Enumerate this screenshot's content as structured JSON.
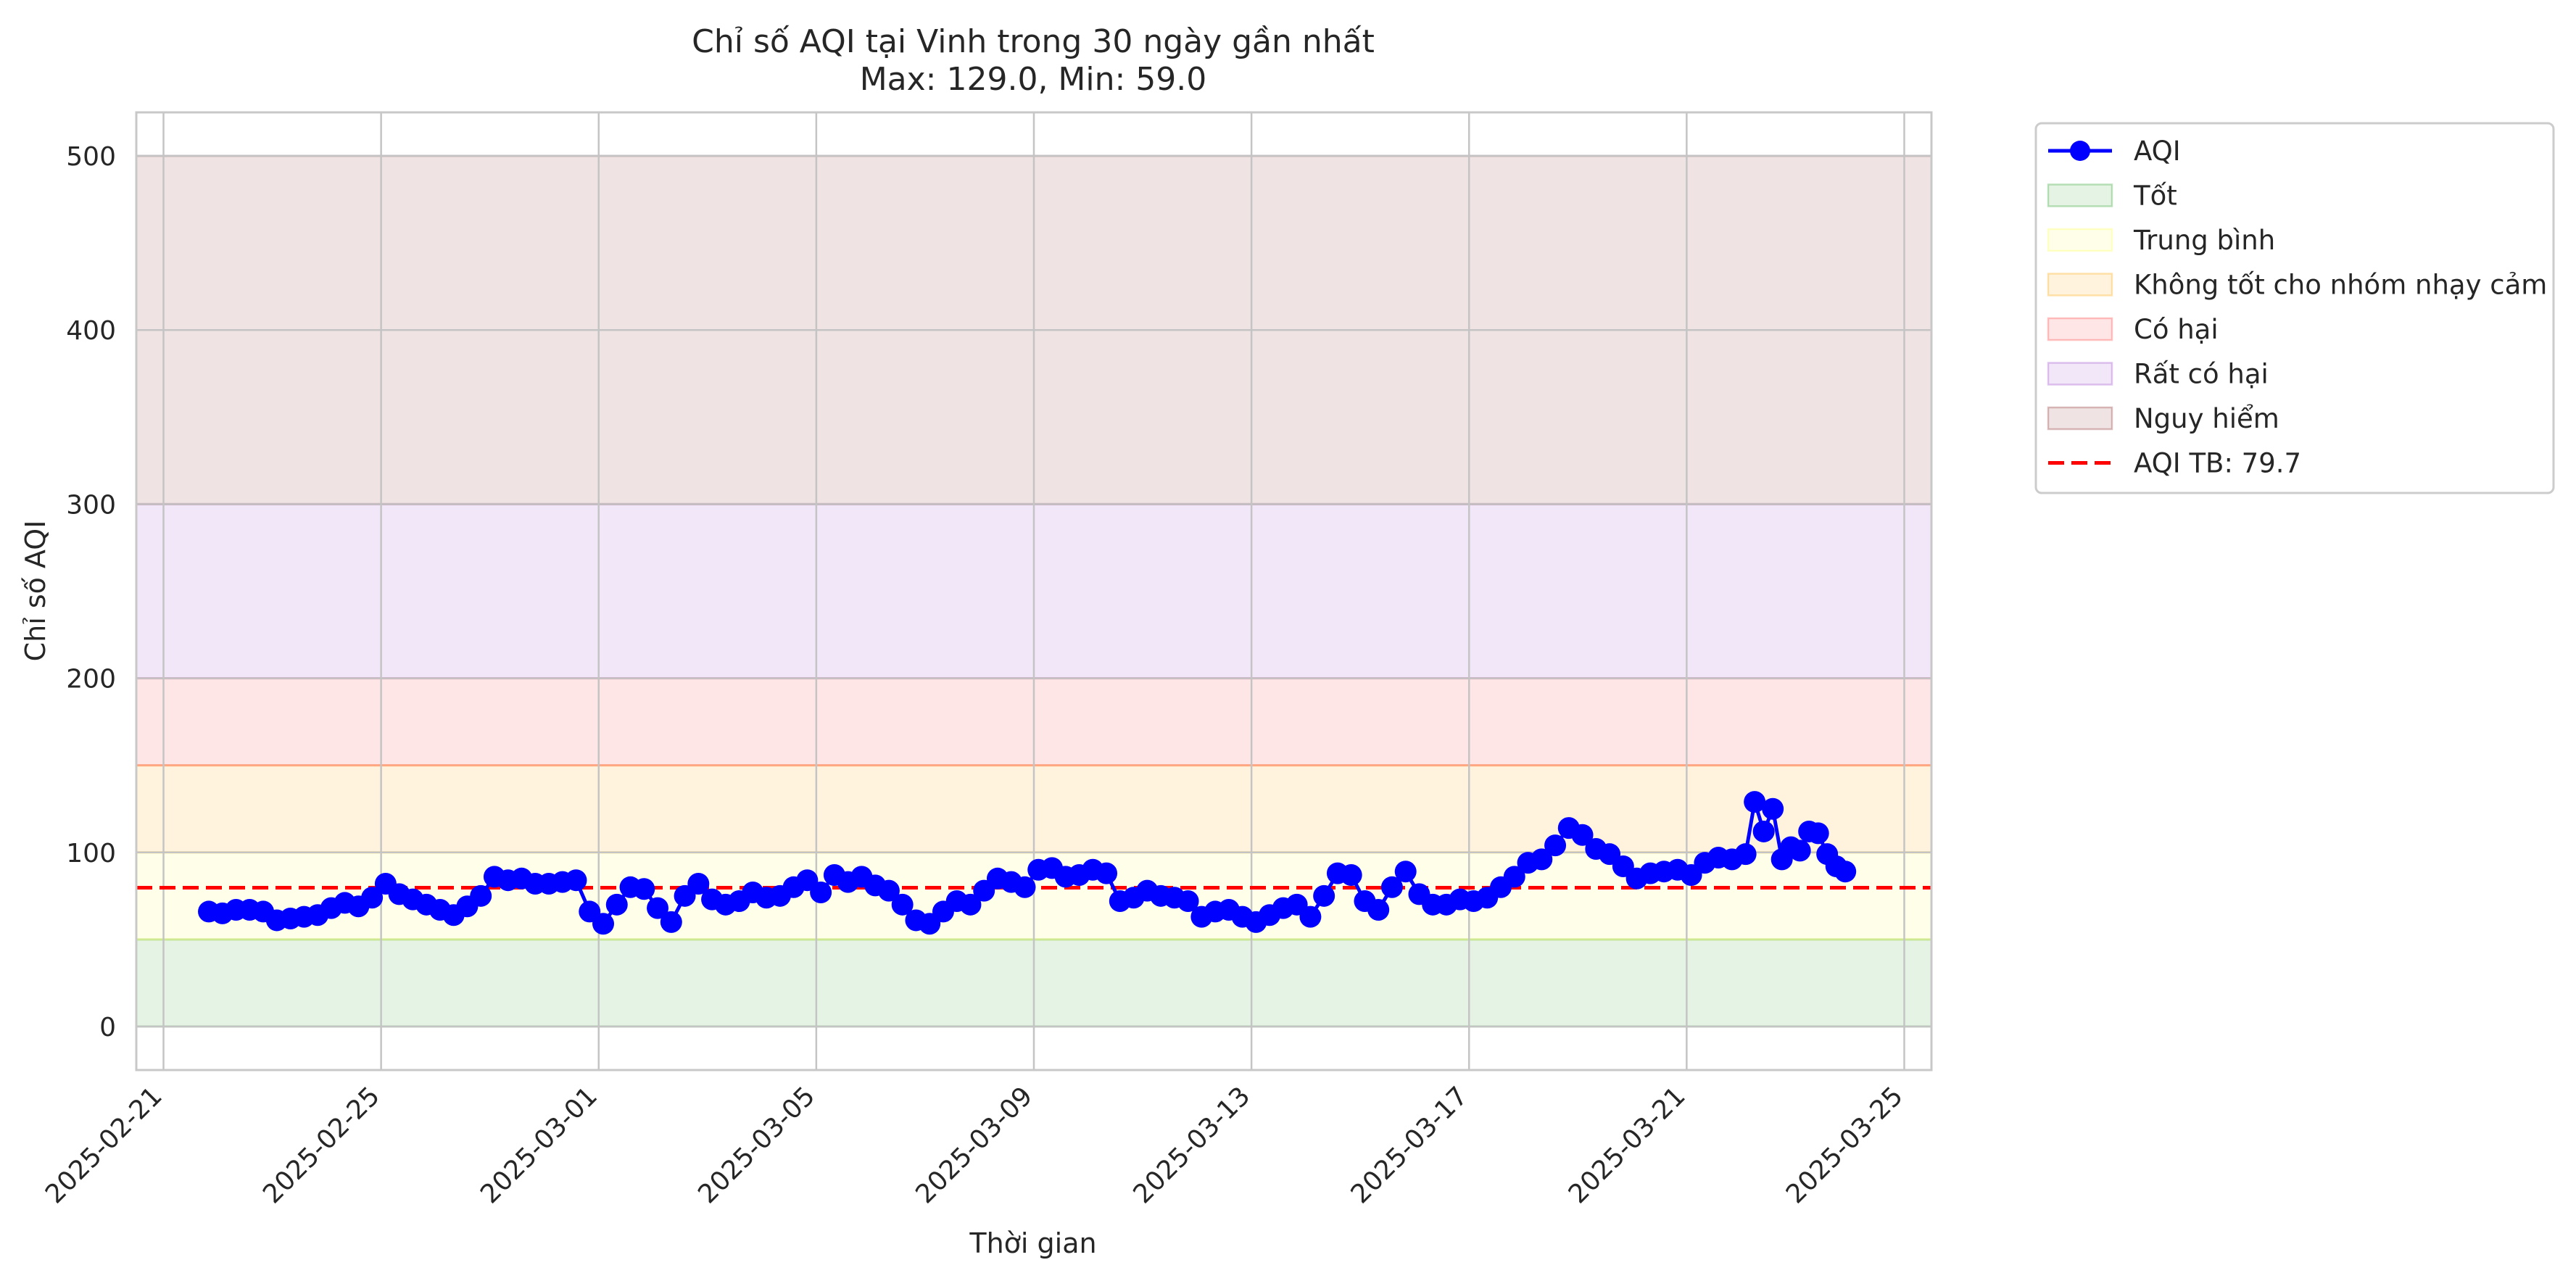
{
  "chart_data": {
    "type": "line",
    "title": "Chỉ số AQI tại Vinh trong 30 ngày gần nhất",
    "subtitle": "Max: 129.0, Min: 59.0",
    "xlabel": "Thời gian",
    "ylabel": "Chỉ số AQI",
    "xlim": [
      "2025-02-20T12:00",
      "2025-03-25T12:00"
    ],
    "ylim": [
      -25,
      525
    ],
    "x_ticks": [
      "2025-02-21",
      "2025-02-25",
      "2025-03-01",
      "2025-03-05",
      "2025-03-09",
      "2025-03-13",
      "2025-03-17",
      "2025-03-21",
      "2025-03-25"
    ],
    "y_ticks": [
      0,
      100,
      200,
      300,
      400,
      500
    ],
    "grid": true,
    "legend_position": "outside-upper-right",
    "bands": [
      {
        "name": "Tốt",
        "from": 0,
        "to": 50,
        "color": "#2ca02c"
      },
      {
        "name": "Trung bình",
        "from": 50,
        "to": 100,
        "color": "#ffff55"
      },
      {
        "name": "Không tốt cho nhóm nhạy cảm",
        "from": 100,
        "to": 150,
        "color": "#ffa500"
      },
      {
        "name": "Có hại",
        "from": 150,
        "to": 200,
        "color": "#ff3b3b"
      },
      {
        "name": "Rất có hại",
        "from": 200,
        "to": 300,
        "color": "#9b45c9"
      },
      {
        "name": "Nguy hiểm",
        "from": 300,
        "to": 500,
        "color": "#8b2a2a"
      }
    ],
    "series": [
      {
        "name": "AQI",
        "color": "#0000ff",
        "points": [
          [
            "2025-02-21T20:00",
            66
          ],
          [
            "2025-02-22T02:00",
            65
          ],
          [
            "2025-02-22T08:00",
            67
          ],
          [
            "2025-02-22T14:00",
            67
          ],
          [
            "2025-02-22T20:00",
            66
          ],
          [
            "2025-02-23T02:00",
            61
          ],
          [
            "2025-02-23T08:00",
            62
          ],
          [
            "2025-02-23T14:00",
            63
          ],
          [
            "2025-02-23T20:00",
            64
          ],
          [
            "2025-02-24T02:00",
            68
          ],
          [
            "2025-02-24T08:00",
            71
          ],
          [
            "2025-02-24T14:00",
            69
          ],
          [
            "2025-02-24T20:00",
            74
          ],
          [
            "2025-02-25T02:00",
            82
          ],
          [
            "2025-02-25T08:00",
            76
          ],
          [
            "2025-02-25T14:00",
            73
          ],
          [
            "2025-02-25T20:00",
            70
          ],
          [
            "2025-02-26T02:00",
            67
          ],
          [
            "2025-02-26T08:00",
            64
          ],
          [
            "2025-02-26T14:00",
            69
          ],
          [
            "2025-02-26T20:00",
            75
          ],
          [
            "2025-02-27T02:00",
            86
          ],
          [
            "2025-02-27T08:00",
            84
          ],
          [
            "2025-02-27T14:00",
            85
          ],
          [
            "2025-02-27T20:00",
            82
          ],
          [
            "2025-02-28T02:00",
            82
          ],
          [
            "2025-02-28T08:00",
            83
          ],
          [
            "2025-02-28T14:00",
            84
          ],
          [
            "2025-02-28T20:00",
            66
          ],
          [
            "2025-03-01T02:00",
            59
          ],
          [
            "2025-03-01T08:00",
            70
          ],
          [
            "2025-03-01T14:00",
            80
          ],
          [
            "2025-03-01T20:00",
            79
          ],
          [
            "2025-03-02T02:00",
            68
          ],
          [
            "2025-03-02T08:00",
            60
          ],
          [
            "2025-03-02T14:00",
            75
          ],
          [
            "2025-03-02T20:00",
            82
          ],
          [
            "2025-03-03T02:00",
            73
          ],
          [
            "2025-03-03T08:00",
            70
          ],
          [
            "2025-03-03T14:00",
            72
          ],
          [
            "2025-03-03T20:00",
            77
          ],
          [
            "2025-03-04T02:00",
            74
          ],
          [
            "2025-03-04T08:00",
            75
          ],
          [
            "2025-03-04T14:00",
            80
          ],
          [
            "2025-03-04T20:00",
            84
          ],
          [
            "2025-03-05T02:00",
            77
          ],
          [
            "2025-03-05T08:00",
            87
          ],
          [
            "2025-03-05T14:00",
            83
          ],
          [
            "2025-03-05T20:00",
            86
          ],
          [
            "2025-03-06T02:00",
            81
          ],
          [
            "2025-03-06T08:00",
            78
          ],
          [
            "2025-03-06T14:00",
            70
          ],
          [
            "2025-03-06T20:00",
            61
          ],
          [
            "2025-03-07T02:00",
            59
          ],
          [
            "2025-03-07T08:00",
            66
          ],
          [
            "2025-03-07T14:00",
            72
          ],
          [
            "2025-03-07T20:00",
            70
          ],
          [
            "2025-03-08T02:00",
            78
          ],
          [
            "2025-03-08T08:00",
            85
          ],
          [
            "2025-03-08T14:00",
            83
          ],
          [
            "2025-03-08T20:00",
            80
          ],
          [
            "2025-03-09T02:00",
            90
          ],
          [
            "2025-03-09T08:00",
            91
          ],
          [
            "2025-03-09T14:00",
            86
          ],
          [
            "2025-03-09T20:00",
            87
          ],
          [
            "2025-03-10T02:00",
            90
          ],
          [
            "2025-03-10T08:00",
            88
          ],
          [
            "2025-03-10T14:00",
            72
          ],
          [
            "2025-03-10T20:00",
            74
          ],
          [
            "2025-03-11T02:00",
            78
          ],
          [
            "2025-03-11T08:00",
            75
          ],
          [
            "2025-03-11T14:00",
            74
          ],
          [
            "2025-03-11T20:00",
            72
          ],
          [
            "2025-03-12T02:00",
            63
          ],
          [
            "2025-03-12T08:00",
            66
          ],
          [
            "2025-03-12T14:00",
            67
          ],
          [
            "2025-03-12T20:00",
            63
          ],
          [
            "2025-03-13T02:00",
            60
          ],
          [
            "2025-03-13T08:00",
            64
          ],
          [
            "2025-03-13T14:00",
            68
          ],
          [
            "2025-03-13T20:00",
            70
          ],
          [
            "2025-03-14T02:00",
            63
          ],
          [
            "2025-03-14T08:00",
            75
          ],
          [
            "2025-03-14T14:00",
            88
          ],
          [
            "2025-03-14T20:00",
            87
          ],
          [
            "2025-03-15T02:00",
            72
          ],
          [
            "2025-03-15T08:00",
            67
          ],
          [
            "2025-03-15T14:00",
            80
          ],
          [
            "2025-03-15T20:00",
            89
          ],
          [
            "2025-03-16T02:00",
            76
          ],
          [
            "2025-03-16T08:00",
            70
          ],
          [
            "2025-03-16T14:00",
            70
          ],
          [
            "2025-03-16T20:00",
            73
          ],
          [
            "2025-03-17T02:00",
            72
          ],
          [
            "2025-03-17T08:00",
            74
          ],
          [
            "2025-03-17T14:00",
            80
          ],
          [
            "2025-03-17T20:00",
            86
          ],
          [
            "2025-03-18T02:00",
            94
          ],
          [
            "2025-03-18T08:00",
            96
          ],
          [
            "2025-03-18T14:00",
            104
          ],
          [
            "2025-03-18T20:00",
            114
          ],
          [
            "2025-03-19T02:00",
            110
          ],
          [
            "2025-03-19T08:00",
            102
          ],
          [
            "2025-03-19T14:00",
            99
          ],
          [
            "2025-03-19T20:00",
            92
          ],
          [
            "2025-03-20T02:00",
            85
          ],
          [
            "2025-03-20T08:00",
            88
          ],
          [
            "2025-03-20T14:00",
            89
          ],
          [
            "2025-03-20T20:00",
            90
          ],
          [
            "2025-03-21T02:00",
            87
          ],
          [
            "2025-03-21T08:00",
            94
          ],
          [
            "2025-03-21T14:00",
            97
          ],
          [
            "2025-03-21T20:00",
            96
          ],
          [
            "2025-03-22T02:00",
            99
          ],
          [
            "2025-03-22T06:00",
            129
          ],
          [
            "2025-03-22T10:00",
            112
          ],
          [
            "2025-03-22T14:00",
            125
          ],
          [
            "2025-03-22T18:00",
            96
          ],
          [
            "2025-03-22T22:00",
            103
          ],
          [
            "2025-03-23T02:00",
            101
          ],
          [
            "2025-03-23T06:00",
            112
          ],
          [
            "2025-03-23T10:00",
            111
          ],
          [
            "2025-03-23T14:00",
            99
          ],
          [
            "2025-03-23T18:00",
            92
          ],
          [
            "2025-03-23T22:00",
            89
          ]
        ]
      }
    ],
    "mean_line": {
      "name": "AQI TB: 79.7",
      "value": 79.7,
      "color": "#ff0000"
    }
  }
}
